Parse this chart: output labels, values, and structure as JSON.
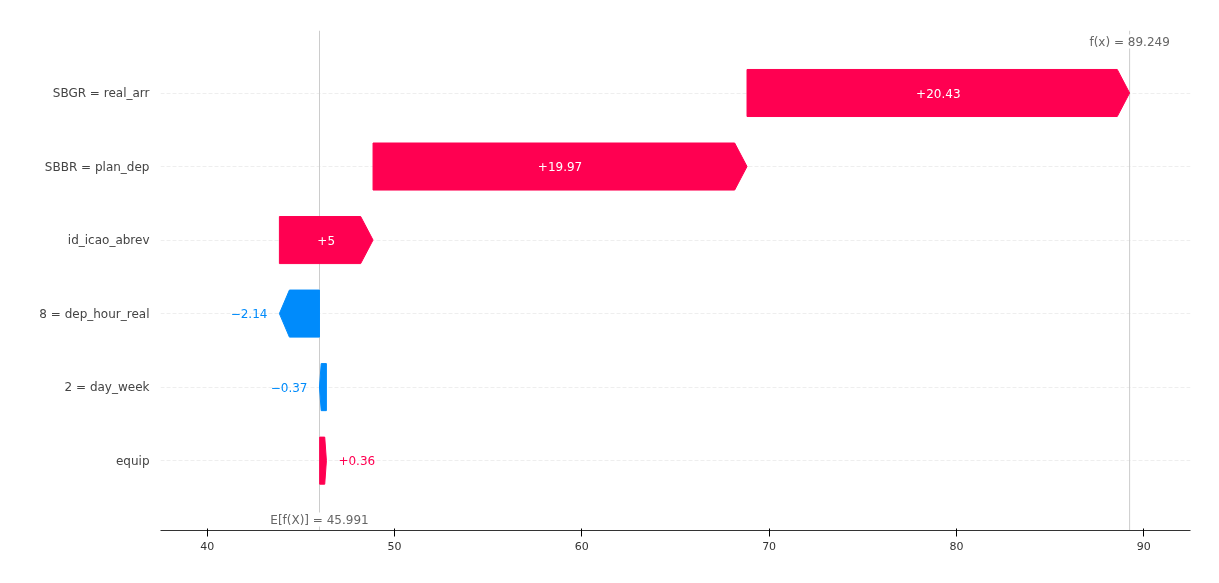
{
  "chart_data": {
    "type": "bar",
    "orientation": "horizontal",
    "categories": [
      "SBGR = real_arr",
      "SBBR = plan_dep",
      "id_icao_abrev",
      "8 = dep_hour_real",
      "2 = day_week",
      "equip"
    ],
    "values": [
      20.43,
      19.97,
      5,
      -2.14,
      -0.37,
      0.36
    ],
    "base": [
      68.819,
      48.849,
      43.849,
      45.989,
      46.359,
      45.999
    ],
    "colors": [
      "#ff0051",
      "#ff0051",
      "#ff0051",
      "#008bfb",
      "#008bfb",
      "#ff0051"
    ],
    "value_labels": [
      "+20.43",
      "+19.97",
      "+5",
      "−2.14",
      "−0.37",
      "+0.36"
    ],
    "xlim": [
      37.5,
      92.5
    ],
    "xticks": [
      40,
      50,
      60,
      70,
      80,
      90
    ],
    "ref_lines": [
      {
        "axis": "x",
        "value": 89.249,
        "label": "f(x) = 89.249",
        "color": "#cccccc"
      },
      {
        "axis": "x",
        "value": 45.991,
        "label": "E[f(X)] = 45.991",
        "color": "#cccccc"
      }
    ],
    "grid": "y"
  }
}
